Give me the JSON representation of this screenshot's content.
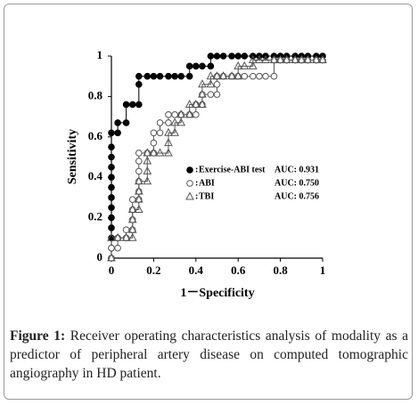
{
  "chart_data": {
    "type": "line",
    "xlabel": "1－Specificity",
    "ylabel": "Sensitivity",
    "xlim": [
      0,
      1
    ],
    "ylim": [
      0,
      1
    ],
    "xticks": [
      0,
      0.2,
      0.4,
      0.6,
      0.8,
      1
    ],
    "yticks": [
      0,
      0.2,
      0.4,
      0.6,
      0.8,
      1
    ],
    "legend_separator": ":",
    "series": [
      {
        "name": "Exercise-ABI test",
        "legend_note": "AUC: 0.931",
        "color": "#000000",
        "marker": "filled-circle",
        "x": [
          0,
          0,
          0,
          0,
          0,
          0,
          0,
          0,
          0,
          0,
          0,
          0,
          0,
          0.03,
          0.03,
          0.07,
          0.07,
          0.1,
          0.13,
          0.13,
          0.13,
          0.17,
          0.2,
          0.23,
          0.27,
          0.3,
          0.33,
          0.37,
          0.37,
          0.4,
          0.43,
          0.47,
          0.47,
          0.5,
          0.53,
          0.57,
          0.6,
          0.63,
          0.67,
          0.7,
          0.73,
          0.77,
          0.8,
          0.83,
          0.87,
          0.9,
          0.93,
          0.97,
          1
        ],
        "values": [
          0,
          0.05,
          0.1,
          0.15,
          0.2,
          0.25,
          0.3,
          0.35,
          0.4,
          0.45,
          0.5,
          0.55,
          0.62,
          0.62,
          0.67,
          0.67,
          0.76,
          0.76,
          0.76,
          0.86,
          0.9,
          0.9,
          0.9,
          0.9,
          0.9,
          0.9,
          0.9,
          0.9,
          0.95,
          0.95,
          0.95,
          0.95,
          1,
          1,
          1,
          1,
          1,
          1,
          1,
          1,
          1,
          1,
          1,
          1,
          1,
          1,
          1,
          1,
          1
        ]
      },
      {
        "name": "ABI",
        "legend_note": "AUC: 0.750",
        "color": "#555555",
        "marker": "open-circle",
        "x": [
          0,
          0,
          0.03,
          0.03,
          0.07,
          0.07,
          0.1,
          0.1,
          0.1,
          0.1,
          0.13,
          0.13,
          0.13,
          0.13,
          0.13,
          0.13,
          0.17,
          0.2,
          0.2,
          0.2,
          0.23,
          0.23,
          0.27,
          0.27,
          0.3,
          0.33,
          0.37,
          0.4,
          0.4,
          0.43,
          0.43,
          0.47,
          0.5,
          0.5,
          0.5,
          0.53,
          0.57,
          0.6,
          0.63,
          0.67,
          0.7,
          0.73,
          0.77,
          0.77,
          0.8,
          0.83,
          0.87,
          0.9,
          0.93,
          0.97,
          1
        ],
        "values": [
          0,
          0.05,
          0.05,
          0.1,
          0.1,
          0.14,
          0.14,
          0.19,
          0.24,
          0.29,
          0.29,
          0.33,
          0.38,
          0.43,
          0.48,
          0.52,
          0.52,
          0.52,
          0.57,
          0.62,
          0.62,
          0.67,
          0.67,
          0.71,
          0.71,
          0.71,
          0.71,
          0.71,
          0.76,
          0.76,
          0.81,
          0.81,
          0.81,
          0.86,
          0.9,
          0.9,
          0.9,
          0.9,
          0.9,
          0.9,
          0.9,
          0.9,
          0.9,
          0.98,
          0.98,
          0.98,
          0.98,
          0.98,
          0.98,
          0.98,
          0.98
        ]
      },
      {
        "name": "TBI",
        "legend_note": "AUC: 0.756",
        "color": "#555555",
        "marker": "open-triangle",
        "x": [
          0,
          0,
          0.03,
          0.07,
          0.1,
          0.1,
          0.1,
          0.1,
          0.13,
          0.13,
          0.13,
          0.13,
          0.17,
          0.17,
          0.17,
          0.17,
          0.2,
          0.23,
          0.27,
          0.27,
          0.27,
          0.3,
          0.3,
          0.33,
          0.33,
          0.37,
          0.37,
          0.4,
          0.43,
          0.43,
          0.43,
          0.47,
          0.47,
          0.5,
          0.53,
          0.57,
          0.6,
          0.6,
          0.63,
          0.67,
          0.67,
          0.7,
          0.73,
          0.77,
          0.8,
          0.83,
          0.87,
          0.9,
          0.93,
          0.97,
          1
        ],
        "values": [
          0,
          0.1,
          0.1,
          0.1,
          0.1,
          0.14,
          0.19,
          0.24,
          0.24,
          0.29,
          0.33,
          0.38,
          0.38,
          0.43,
          0.48,
          0.52,
          0.52,
          0.52,
          0.52,
          0.57,
          0.62,
          0.62,
          0.67,
          0.67,
          0.71,
          0.71,
          0.76,
          0.76,
          0.76,
          0.81,
          0.86,
          0.86,
          0.9,
          0.9,
          0.9,
          0.9,
          0.9,
          0.95,
          0.95,
          0.95,
          0.98,
          0.98,
          0.98,
          0.98,
          0.98,
          0.98,
          0.98,
          0.98,
          0.98,
          0.98,
          0.98
        ]
      }
    ]
  },
  "caption": {
    "label": "Figure 1:",
    "text": "Receiver operating characteristics analysis of modality as a predictor of peripheral artery disease on computed tomographic angiography in HD patient."
  }
}
